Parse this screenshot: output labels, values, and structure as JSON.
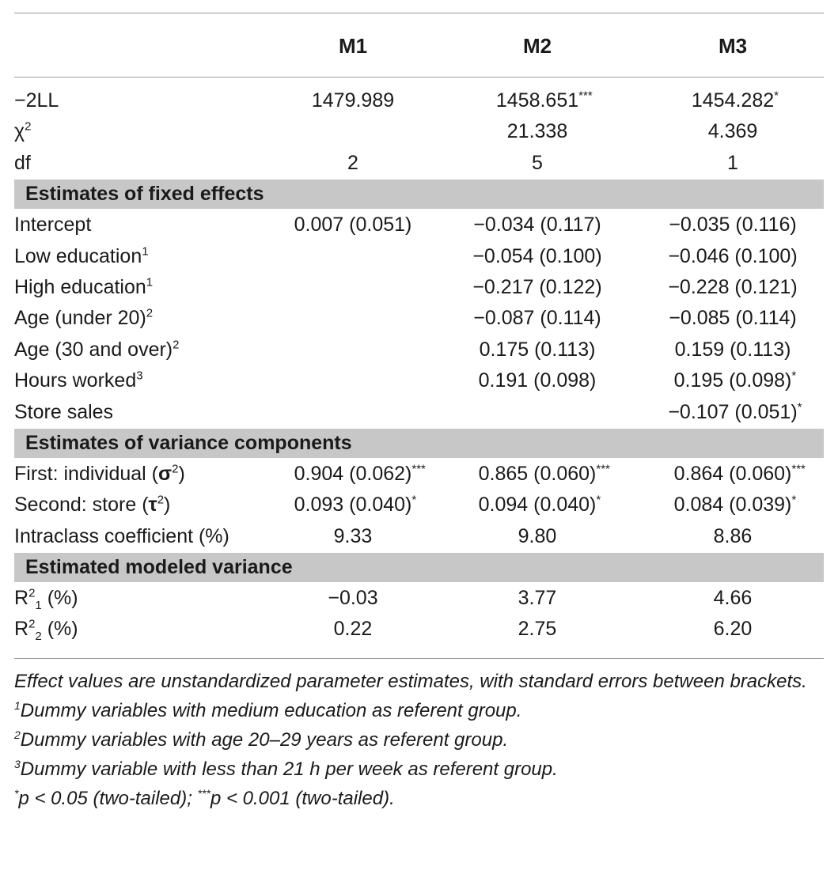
{
  "header": {
    "blank": "",
    "m1": "M1",
    "m2": "M2",
    "m3": "M3"
  },
  "fit": [
    {
      "label": "−2LL",
      "m1": "1479.989",
      "m2": "1458.651",
      "m2_sig": "***",
      "m3": "1454.282",
      "m3_sig": "*"
    },
    {
      "label": "χ",
      "label_sup": "2",
      "m1": "",
      "m2": "21.338",
      "m3": "4.369"
    },
    {
      "label": "df",
      "m1": "2",
      "m2": "5",
      "m3": "1"
    }
  ],
  "sections": {
    "fixed": "Estimates of fixed effects",
    "variance": "Estimates of variance components",
    "modeled": "Estimated modeled variance"
  },
  "fixed_rows": [
    {
      "label": "Intercept",
      "m1": "0.007 (0.051)",
      "m2": "−0.034 (0.117)",
      "m3": "−0.035 (0.116)"
    },
    {
      "label": "Low education",
      "label_sup": "1",
      "m1": "",
      "m2": "−0.054 (0.100)",
      "m3": "−0.046 (0.100)"
    },
    {
      "label": "High education",
      "label_sup": "1",
      "m1": "",
      "m2": "−0.217 (0.122)",
      "m3": "−0.228 (0.121)"
    },
    {
      "label": "Age (under 20)",
      "label_sup": "2",
      "m1": "",
      "m2": "−0.087 (0.114)",
      "m3": "−0.085 (0.114)"
    },
    {
      "label": "Age (30 and over)",
      "label_sup": "2",
      "m1": "",
      "m2": "0.175 (0.113)",
      "m3": "0.159 (0.113)"
    },
    {
      "label": "Hours worked",
      "label_sup": "3",
      "m1": "",
      "m2": "0.191 (0.098)",
      "m3": "0.195 (0.098)",
      "m3_sig": "*"
    },
    {
      "label": "Store sales",
      "m1": "",
      "m2": "",
      "m3": "−0.107 (0.051)",
      "m3_sig": "*"
    }
  ],
  "variance_rows": [
    {
      "label": "First: individual (",
      "sym": "σ",
      "sym_sup": "2",
      "close": ")",
      "m1": "0.904 (0.062)",
      "m1_sig": "***",
      "m2": "0.865 (0.060)",
      "m2_sig": "***",
      "m3": "0.864 (0.060)",
      "m3_sig": "***"
    },
    {
      "label": "Second: store (",
      "sym": "τ",
      "sym_sup": "2",
      "close": ")",
      "m1": "0.093 (0.040)",
      "m1_sig": "*",
      "m2": "0.094 (0.040)",
      "m2_sig": "*",
      "m3": "0.084 (0.039)",
      "m3_sig": "*"
    },
    {
      "label": "Intraclass coefficient (%)",
      "m1": "9.33",
      "m2": "9.80",
      "m3": "8.86"
    }
  ],
  "modeled_rows": [
    {
      "label": "R",
      "sup": "2",
      "sub": "1",
      "tail": " (%)",
      "m1": "−0.03",
      "m2": "3.77",
      "m3": "4.66"
    },
    {
      "label": "R",
      "sup": "2",
      "sub": "2",
      "tail": " (%)",
      "m1": "0.22",
      "m2": "2.75",
      "m3": "6.20"
    }
  ],
  "notes": {
    "line1": "Effect values are unstandardized parameter estimates, with standard errors between brackets.",
    "n1_mark": "1",
    "n1": "Dummy variables with medium education as referent group.",
    "n2_mark": "2",
    "n2": "Dummy variables with age 20–29 years as referent group.",
    "n3_mark": "3",
    "n3": "Dummy variable with less than 21 h per week as referent group.",
    "p1_mark": "*",
    "p1": "p < 0.05 (two-tailed); ",
    "p2_mark": "***",
    "p2": "p < 0.001 (two-tailed)."
  }
}
